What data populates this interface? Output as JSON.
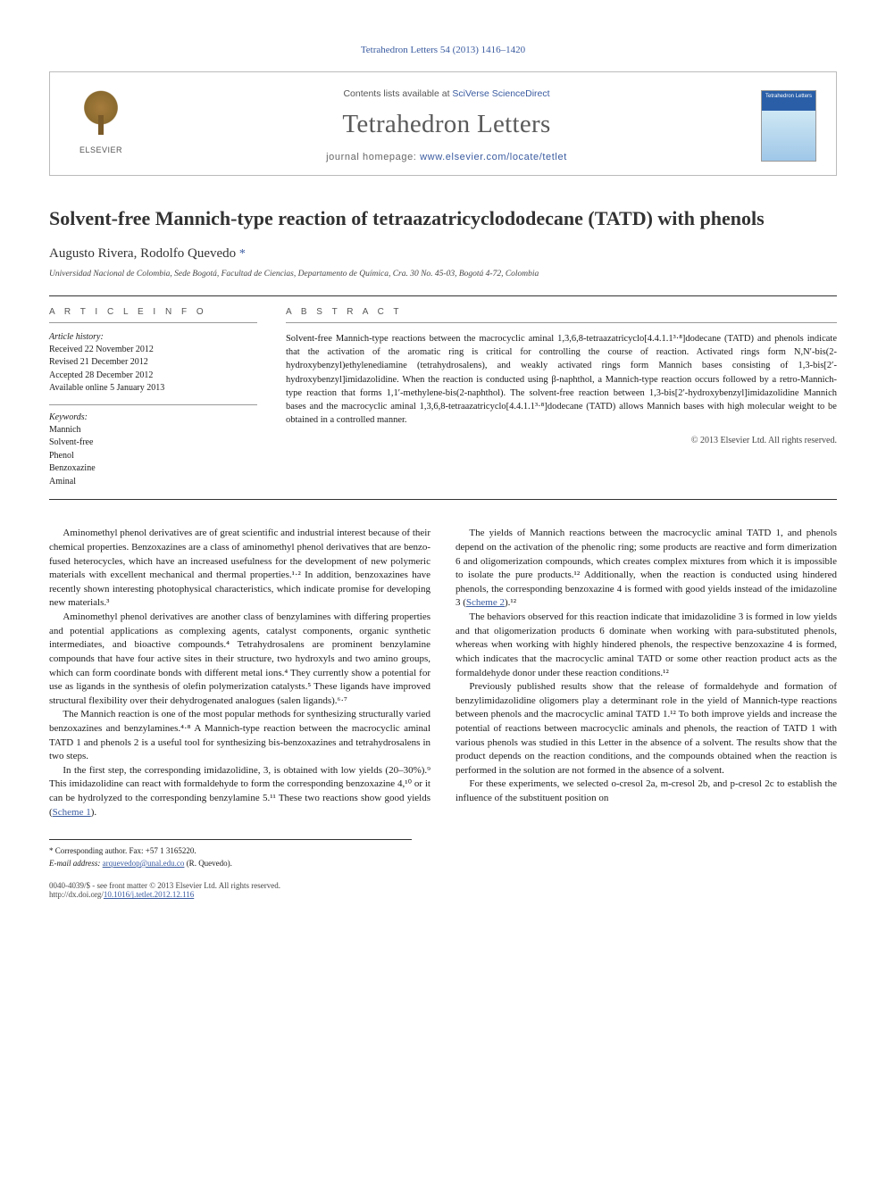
{
  "citation": "Tetrahedron Letters 54 (2013) 1416–1420",
  "masthead": {
    "contents_prefix": "Contents lists available at ",
    "contents_link": "SciVerse ScienceDirect",
    "journal": "Tetrahedron Letters",
    "homepage_prefix": "journal homepage: ",
    "homepage_url": "www.elsevier.com/locate/tetlet",
    "publisher": "ELSEVIER",
    "cover_text": "Tetrahedron Letters"
  },
  "title": "Solvent-free Mannich-type reaction of tetraazatricyclododecane (TATD) with phenols",
  "authors": "Augusto Rivera, Rodolfo Quevedo",
  "corr_symbol": "*",
  "affiliation": "Universidad Nacional de Colombia, Sede Bogotá, Facultad de Ciencias, Departamento de Química, Cra. 30 No. 45-03, Bogotá 4-72, Colombia",
  "info_head": "A R T I C L E   I N F O",
  "abs_head": "A B S T R A C T",
  "history_label": "Article history:",
  "history": [
    "Received 22 November 2012",
    "Revised 21 December 2012",
    "Accepted 28 December 2012",
    "Available online 5 January 2013"
  ],
  "kw_label": "Keywords:",
  "keywords": [
    "Mannich",
    "Solvent-free",
    "Phenol",
    "Benzoxazine",
    "Aminal"
  ],
  "abstract": "Solvent-free Mannich-type reactions between the macrocyclic aminal 1,3,6,8-tetraazatricyclo[4.4.1.1³·⁸]dodecane (TATD) and phenols indicate that the activation of the aromatic ring is critical for controlling the course of reaction. Activated rings form N,N′-bis(2-hydroxybenzyl)ethylenediamine (tetrahydrosalens), and weakly activated rings form Mannich bases consisting of 1,3-bis[2′-hydroxybenzyl]imidazolidine. When the reaction is conducted using β-naphthol, a Mannich-type reaction occurs followed by a retro-Mannich-type reaction that forms 1,1′-methylene-bis(2-naphthol). The solvent-free reaction between 1,3-bis[2′-hydroxybenzyl]imidazolidine Mannich bases and the macrocyclic aminal 1,3,6,8-tetraazatricyclo[4.4.1.1³·⁸]dodecane (TATD) allows Mannich bases with high molecular weight to be obtained in a controlled manner.",
  "copyright": "© 2013 Elsevier Ltd. All rights reserved.",
  "body": {
    "p1": "Aminomethyl phenol derivatives are of great scientific and industrial interest because of their chemical properties. Benzoxazines are a class of aminomethyl phenol derivatives that are benzo-fused heterocycles, which have an increased usefulness for the development of new polymeric materials with excellent mechanical and thermal properties.¹·² In addition, benzoxazines have recently shown interesting photophysical characteristics, which indicate promise for developing new materials.³",
    "p2": "Aminomethyl phenol derivatives are another class of benzylamines with differing properties and potential applications as complexing agents, catalyst components, organic synthetic intermediates, and bioactive compounds.⁴ Tetrahydrosalens are prominent benzylamine compounds that have four active sites in their structure, two hydroxyls and two amino groups, which can form coordinate bonds with different metal ions.⁴ They currently show a potential for use as ligands in the synthesis of olefin polymerization catalysts.⁵ These ligands have improved structural flexibility over their dehydrogenated analogues (salen ligands).⁶·⁷",
    "p3": "The Mannich reaction is one of the most popular methods for synthesizing structurally varied benzoxazines and benzylamines.⁴·⁸ A Mannich-type reaction between the macrocyclic aminal TATD 1 and phenols 2 is a useful tool for synthesizing bis-benzoxazines and tetrahydrosalens in two steps.",
    "p4a": "In the first step, the corresponding imidazolidine, 3, is obtained with low yields (20–30%).⁹ This imidazolidine can react with formaldehyde to form the corresponding benzoxazine 4,¹⁰ or it can be ",
    "p4b": "hydrolyzed to the corresponding benzylamine 5.¹¹ These two reactions show good yields (",
    "scheme1": "Scheme 1",
    "p4c": ").",
    "p5a": "The yields of Mannich reactions between the macrocyclic aminal TATD 1, and phenols depend on the activation of the phenolic ring; some products are reactive and form dimerization 6 and oligomerization compounds, which creates complex mixtures from which it is impossible to isolate the pure products.¹² Additionally, when the reaction is conducted using hindered phenols, the corresponding benzoxazine 4 is formed with good yields instead of the imidazoline 3 (",
    "scheme2": "Scheme 2",
    "p5b": ").¹²",
    "p6": "The behaviors observed for this reaction indicate that imidazolidine 3 is formed in low yields and that oligomerization products 6 dominate when working with para-substituted phenols, whereas when working with highly hindered phenols, the respective benzoxazine 4 is formed, which indicates that the macrocyclic aminal TATD or some other reaction product acts as the formaldehyde donor under these reaction conditions.¹²",
    "p7": "Previously published results show that the release of formaldehyde and formation of benzylimidazolidine oligomers play a determinant role in the yield of Mannich-type reactions between phenols and the macrocyclic aminal TATD 1.¹² To both improve yields and increase the potential of reactions between macrocyclic aminals and phenols, the reaction of TATD 1 with various phenols was studied in this Letter in the absence of a solvent. The results show that the product depends on the reaction conditions, and the compounds obtained when the reaction is performed in the solution are not formed in the absence of a solvent.",
    "p8": "For these experiments, we selected o-cresol 2a, m-cresol 2b, and p-cresol 2c to establish the influence of the substituent position on"
  },
  "footnotes": {
    "corr": "* Corresponding author. Fax: +57 1 3165220.",
    "email_label": "E-mail address:",
    "email": "arquevedop@unal.edu.co",
    "email_suffix": "(R. Quevedo)."
  },
  "bottom": {
    "left1": "0040-4039/$ - see front matter © 2013 Elsevier Ltd. All rights reserved.",
    "doi_label": "http://dx.doi.org/",
    "doi": "10.1016/j.tetlet.2012.12.116"
  },
  "colors": {
    "link": "#3a5ba0",
    "text": "#1a1a1a",
    "rule": "#333333",
    "masthead_border": "#bbbbbb"
  },
  "typography": {
    "title_pt": 22,
    "authors_pt": 15,
    "body_pt": 11,
    "abstract_pt": 10.5,
    "small_pt": 10,
    "footnote_pt": 9
  }
}
